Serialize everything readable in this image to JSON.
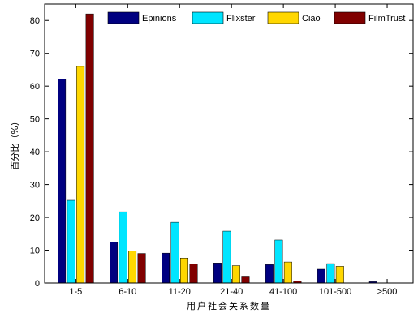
{
  "chart_data": {
    "type": "bar",
    "title": "",
    "xlabel": "用户社会关系数量",
    "ylabel": "百分比（%）",
    "ylim": [
      0,
      85
    ],
    "yticks": [
      0,
      10,
      20,
      30,
      40,
      50,
      60,
      70,
      80
    ],
    "categories": [
      "1-5",
      "6-10",
      "11-20",
      "21-40",
      "41-100",
      "101-500",
      ">500"
    ],
    "series": [
      {
        "name": "Epinions",
        "color": "#000080",
        "values": [
          62.2,
          12.5,
          9.1,
          6.1,
          5.6,
          4.2,
          0.4
        ]
      },
      {
        "name": "Flixster",
        "color": "#00e5ff",
        "values": [
          25.2,
          21.7,
          18.5,
          15.8,
          13.1,
          5.9,
          0.0
        ]
      },
      {
        "name": "Ciao",
        "color": "#ffd700",
        "values": [
          66.0,
          9.8,
          7.6,
          5.3,
          6.4,
          5.1,
          0.0
        ]
      },
      {
        "name": "FilmTrust",
        "color": "#800000",
        "values": [
          82.0,
          9.0,
          5.8,
          2.1,
          0.6,
          0.0,
          0.0
        ]
      }
    ],
    "legend_position": "top",
    "grid": false
  }
}
